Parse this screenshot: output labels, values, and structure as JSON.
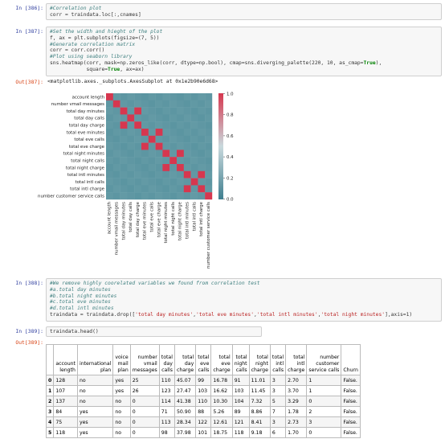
{
  "cells": [
    {
      "prompt": "In [386]:",
      "lines": [
        [
          {
            "t": "#Correlation plot",
            "c": "cm"
          }
        ],
        [
          {
            "t": "corr = traindata.loc[:,cnames]",
            "c": ""
          }
        ]
      ]
    },
    {
      "prompt": "In [387]:",
      "lines": [
        [
          {
            "t": "#Set the width and hieght of the plot",
            "c": "cm"
          }
        ],
        [
          {
            "t": "f, ax = plt.subplots(figsize=(7, 5))",
            "c": ""
          }
        ],
        [
          {
            "t": "#Generate correlation matrix",
            "c": "cm"
          }
        ],
        [
          {
            "t": "corr = corr.corr()",
            "c": ""
          }
        ],
        [
          {
            "t": "#Plot using seaborn library",
            "c": "cm"
          }
        ],
        [
          {
            "t": "sns.heatmap(corr, mask=np.zeros_like(corr, dtype=np.bool), cmap=sns.diverging_palette(220, 10, as_cmap=",
            "c": ""
          },
          {
            "t": "True",
            "c": "kw"
          },
          {
            "t": "),",
            "c": ""
          }
        ],
        [
          {
            "t": "            square=",
            "c": ""
          },
          {
            "t": "True",
            "c": "kw"
          },
          {
            "t": ", ax=ax)",
            "c": ""
          }
        ]
      ]
    },
    {
      "prompt": "In [388]:",
      "lines": [
        [
          {
            "t": "#We remove highly coorelated variables we found from correlation test",
            "c": "cm"
          }
        ],
        [
          {
            "t": "#a.total day minutes",
            "c": "cm"
          }
        ],
        [
          {
            "t": "#b.total night minutes",
            "c": "cm"
          }
        ],
        [
          {
            "t": "#c.total eve minutes",
            "c": "cm"
          }
        ],
        [
          {
            "t": "#d.total intl minutes",
            "c": "cm"
          }
        ],
        [
          {
            "t": "traindata = traindata.drop([",
            "c": ""
          },
          {
            "t": "'total day minutes'",
            "c": "str"
          },
          {
            "t": ",",
            "c": ""
          },
          {
            "t": "'total eve minutes'",
            "c": "str"
          },
          {
            "t": ",",
            "c": ""
          },
          {
            "t": "'total intl minutes'",
            "c": "str"
          },
          {
            "t": ",",
            "c": ""
          },
          {
            "t": "'total night minutes'",
            "c": "str"
          },
          {
            "t": "],axis=1)",
            "c": ""
          }
        ]
      ]
    },
    {
      "prompt": "In [389]:",
      "lines": [
        [
          {
            "t": "traindata.head()",
            "c": ""
          }
        ]
      ]
    }
  ],
  "out387": {
    "prompt": "Out[387]:",
    "text": "<matplotlib.axes._subplots.AxesSubplot at 0x1e2b90e6d68>"
  },
  "out389": {
    "prompt": "Out[389]:"
  },
  "chart_data": {
    "type": "heatmap",
    "labels": [
      "account length",
      "number vmail messages",
      "total day minutes",
      "total day calls",
      "total day charge",
      "total eve minutes",
      "total eve calls",
      "total eve charge",
      "total night minutes",
      "total night calls",
      "total night charge",
      "total intl minutes",
      "total intl calls",
      "total intl charge",
      "number customer service calls"
    ],
    "high_pairs": [
      [
        2,
        4
      ],
      [
        5,
        7
      ],
      [
        8,
        10
      ],
      [
        11,
        13
      ]
    ],
    "colorbar_ticks": [
      "1.0",
      "0.8",
      "0.6",
      "0.4",
      "0.2",
      "0.0"
    ],
    "colorbar_range": [
      0,
      1
    ],
    "colors": {
      "low": "#3f7f8f",
      "mid": "#c9d9dd",
      "high": "#d6374f",
      "near_zero": "#5b95a1"
    }
  },
  "table": {
    "columns": [
      "account\nlength",
      "international\nplan",
      "voice\nmail\nplan",
      "number\nvmail\nmessages",
      "total\nday\ncalls",
      "total\nday\ncharge",
      "total\neve\ncalls",
      "total\neve\ncharge",
      "total\nnight\ncalls",
      "total\nnight\ncharge",
      "total\nintl\ncalls",
      "total\nintl\ncharge",
      "number\ncustomer\nservice calls",
      "Churn"
    ],
    "rows": [
      {
        "index": "0",
        "cells": [
          "128",
          "no",
          "yes",
          "25",
          "110",
          "45.07",
          "99",
          "16.78",
          "91",
          "11.01",
          "3",
          "2.70",
          "1",
          "False."
        ]
      },
      {
        "index": "1",
        "cells": [
          "107",
          "no",
          "yes",
          "26",
          "123",
          "27.47",
          "103",
          "16.62",
          "103",
          "11.45",
          "3",
          "3.70",
          "1",
          "False."
        ]
      },
      {
        "index": "2",
        "cells": [
          "137",
          "no",
          "no",
          "0",
          "114",
          "41.38",
          "110",
          "10.30",
          "104",
          "7.32",
          "5",
          "3.29",
          "0",
          "False."
        ]
      },
      {
        "index": "3",
        "cells": [
          "84",
          "yes",
          "no",
          "0",
          "71",
          "50.90",
          "88",
          "5.26",
          "89",
          "8.86",
          "7",
          "1.78",
          "2",
          "False."
        ]
      },
      {
        "index": "4",
        "cells": [
          "75",
          "yes",
          "no",
          "0",
          "113",
          "28.34",
          "122",
          "12.61",
          "121",
          "8.41",
          "3",
          "2.73",
          "3",
          "False."
        ]
      },
      {
        "index": "5",
        "cells": [
          "118",
          "yes",
          "no",
          "0",
          "98",
          "37.98",
          "101",
          "18.75",
          "118",
          "9.18",
          "6",
          "1.70",
          "0",
          "False."
        ]
      }
    ]
  }
}
